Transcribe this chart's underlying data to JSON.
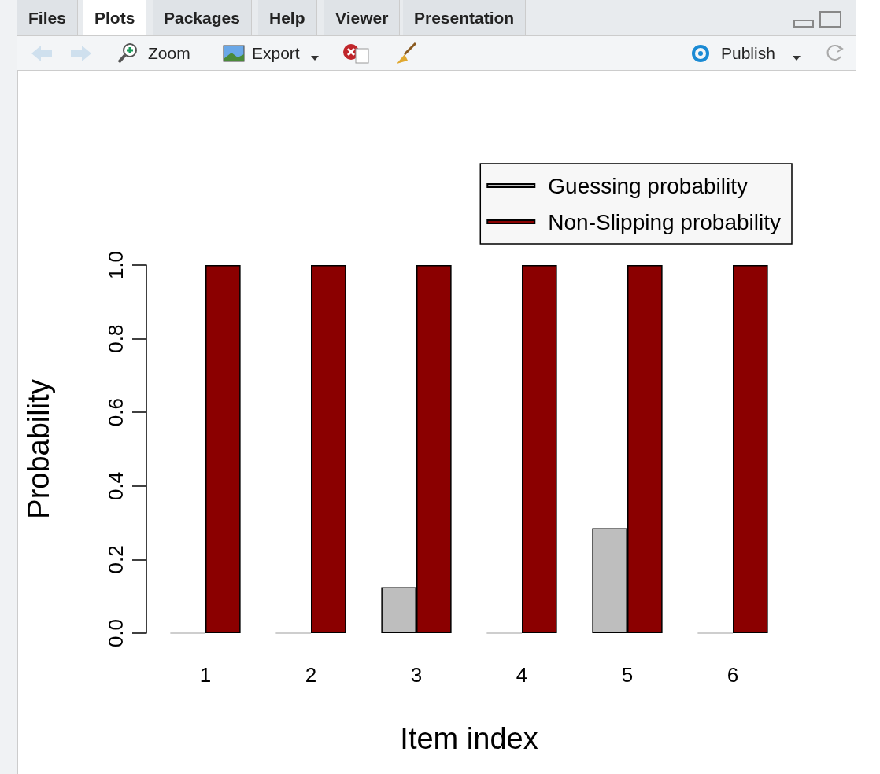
{
  "chart_data": {
    "type": "bar",
    "xlabel": "Item index",
    "ylabel": "Probability",
    "categories": [
      "1",
      "2",
      "3",
      "4",
      "5",
      "6"
    ],
    "series": [
      {
        "name": "Guessing probability",
        "color": "#bebebe",
        "values": [
          0,
          0,
          0.125,
          0,
          0.285,
          0
        ]
      },
      {
        "name": "Non-Slipping probability",
        "color": "#8b0000",
        "values": [
          1,
          1,
          1,
          1,
          1,
          1
        ]
      }
    ],
    "ylim": [
      0,
      1
    ],
    "yticks": [
      {
        "value": 0,
        "label": "0.0"
      },
      {
        "value": 0.2,
        "label": "0.2"
      },
      {
        "value": 0.4,
        "label": "0.4"
      },
      {
        "value": 0.6,
        "label": "0.6"
      },
      {
        "value": 0.8,
        "label": "0.8"
      },
      {
        "value": 1,
        "label": "1.0"
      }
    ],
    "grid": false,
    "legend": "top right",
    "annotations": [
      "Files",
      "Plots",
      "Packages",
      "Help",
      "Viewer",
      "Presentation",
      "Zoom",
      "Export",
      "Publish"
    ]
  }
}
